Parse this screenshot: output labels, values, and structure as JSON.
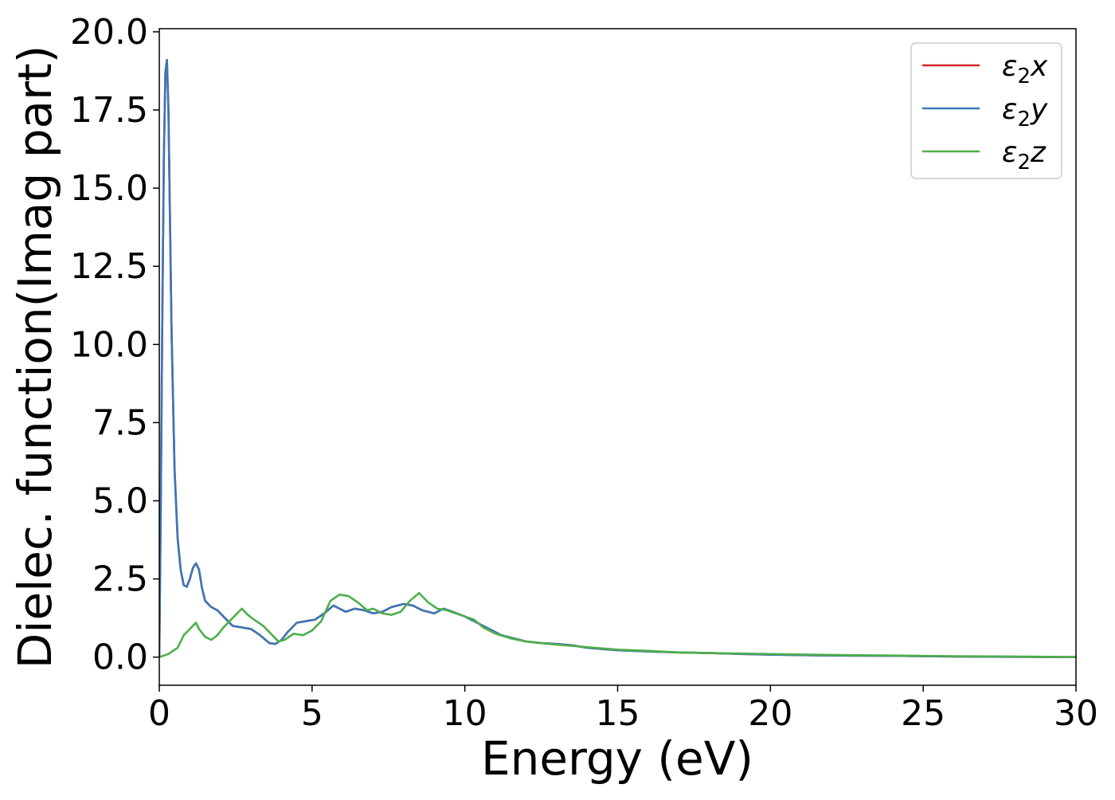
{
  "chart_data": {
    "type": "line",
    "title": "",
    "xlabel": "Energy (eV)",
    "ylabel": "Dielec. function(Imag part)",
    "xlim": [
      0,
      30
    ],
    "ylim": [
      -0.9,
      20.1
    ],
    "xticks": [
      0,
      5,
      10,
      15,
      20,
      25,
      30
    ],
    "xtick_labels": [
      "0",
      "5",
      "10",
      "15",
      "20",
      "25",
      "30"
    ],
    "yticks": [
      0.0,
      2.5,
      5.0,
      7.5,
      10.0,
      12.5,
      15.0,
      17.5,
      20.0
    ],
    "ytick_labels": [
      "0.0",
      "2.5",
      "5.0",
      "7.5",
      "10.0",
      "12.5",
      "15.0",
      "17.5",
      "20.0"
    ],
    "grid": false,
    "legend_position": "top-right",
    "series": [
      {
        "name": "ε2x",
        "legend_base": "ε",
        "legend_sub": "2",
        "legend_var": "x",
        "color": "#d62728",
        "x": [
          0,
          0.05,
          0.1,
          0.15,
          0.2,
          0.25,
          0.3,
          0.35,
          0.4,
          0.5,
          0.6,
          0.7,
          0.8,
          0.9,
          1.0,
          1.1,
          1.2,
          1.3,
          1.4,
          1.5,
          1.7,
          1.9,
          2.1,
          2.4,
          2.7,
          3.0,
          3.3,
          3.6,
          3.8,
          4.0,
          4.2,
          4.5,
          4.8,
          5.1,
          5.4,
          5.7,
          5.9,
          6.1,
          6.4,
          6.7,
          7.0,
          7.3,
          7.6,
          8.0,
          8.3,
          8.6,
          9.0,
          9.3,
          9.6,
          10.0,
          10.4,
          10.8,
          11.2,
          11.6,
          12.0,
          12.5,
          13.0,
          13.5,
          14.0,
          15.0,
          16.0,
          17.0,
          18.0,
          19.0,
          20.0,
          22.0,
          24.0,
          26.0,
          28.0,
          30.0
        ],
        "y": [
          0.0,
          5.0,
          11.0,
          16.0,
          18.7,
          19.1,
          17.5,
          14.0,
          10.5,
          6.0,
          3.8,
          2.8,
          2.3,
          2.25,
          2.5,
          2.85,
          3.0,
          2.8,
          2.2,
          1.8,
          1.6,
          1.5,
          1.3,
          1.0,
          0.95,
          0.9,
          0.7,
          0.45,
          0.42,
          0.55,
          0.8,
          1.1,
          1.15,
          1.2,
          1.4,
          1.65,
          1.55,
          1.45,
          1.55,
          1.5,
          1.4,
          1.45,
          1.6,
          1.7,
          1.65,
          1.5,
          1.4,
          1.55,
          1.45,
          1.3,
          1.1,
          0.9,
          0.7,
          0.6,
          0.5,
          0.45,
          0.42,
          0.38,
          0.3,
          0.22,
          0.18,
          0.15,
          0.13,
          0.1,
          0.08,
          0.05,
          0.04,
          0.02,
          0.01,
          0.0
        ]
      },
      {
        "name": "ε2y",
        "legend_base": "ε",
        "legend_sub": "2",
        "legend_var": "y",
        "color": "#3a78b6",
        "x": [
          0,
          0.05,
          0.1,
          0.15,
          0.2,
          0.25,
          0.3,
          0.35,
          0.4,
          0.5,
          0.6,
          0.7,
          0.8,
          0.9,
          1.0,
          1.1,
          1.2,
          1.3,
          1.4,
          1.5,
          1.7,
          1.9,
          2.1,
          2.4,
          2.7,
          3.0,
          3.3,
          3.6,
          3.8,
          4.0,
          4.2,
          4.5,
          4.8,
          5.1,
          5.4,
          5.7,
          5.9,
          6.1,
          6.4,
          6.7,
          7.0,
          7.3,
          7.6,
          8.0,
          8.3,
          8.6,
          9.0,
          9.3,
          9.6,
          10.0,
          10.4,
          10.8,
          11.2,
          11.6,
          12.0,
          12.5,
          13.0,
          13.5,
          14.0,
          15.0,
          16.0,
          17.0,
          18.0,
          19.0,
          20.0,
          22.0,
          24.0,
          26.0,
          28.0,
          30.0
        ],
        "y": [
          0.0,
          5.0,
          11.0,
          16.0,
          18.7,
          19.1,
          17.5,
          14.0,
          10.5,
          6.0,
          3.8,
          2.8,
          2.3,
          2.25,
          2.5,
          2.85,
          3.0,
          2.8,
          2.2,
          1.8,
          1.6,
          1.5,
          1.3,
          1.0,
          0.95,
          0.9,
          0.7,
          0.45,
          0.42,
          0.55,
          0.8,
          1.1,
          1.15,
          1.2,
          1.4,
          1.65,
          1.55,
          1.45,
          1.55,
          1.5,
          1.4,
          1.45,
          1.6,
          1.7,
          1.65,
          1.5,
          1.4,
          1.55,
          1.45,
          1.3,
          1.1,
          0.9,
          0.7,
          0.6,
          0.5,
          0.45,
          0.42,
          0.38,
          0.3,
          0.22,
          0.18,
          0.15,
          0.13,
          0.1,
          0.08,
          0.05,
          0.04,
          0.02,
          0.01,
          0.0
        ]
      },
      {
        "name": "ε2z",
        "legend_base": "ε",
        "legend_sub": "2",
        "legend_var": "z",
        "color": "#4daf4a",
        "x": [
          0,
          0.3,
          0.6,
          0.8,
          1.0,
          1.2,
          1.3,
          1.5,
          1.7,
          1.9,
          2.1,
          2.4,
          2.7,
          2.9,
          3.1,
          3.4,
          3.7,
          3.9,
          4.1,
          4.4,
          4.7,
          5.0,
          5.3,
          5.6,
          5.9,
          6.2,
          6.5,
          6.8,
          7.0,
          7.3,
          7.6,
          7.9,
          8.2,
          8.5,
          8.8,
          9.1,
          9.4,
          9.7,
          10.0,
          10.3,
          10.6,
          11.0,
          11.5,
          12.0,
          12.5,
          13.0,
          14.0,
          15.0,
          16.0,
          17.0,
          18.0,
          20.0,
          22.0,
          24.0,
          26.0,
          28.0,
          30.0
        ],
        "y": [
          0.0,
          0.1,
          0.3,
          0.7,
          0.9,
          1.1,
          0.9,
          0.65,
          0.55,
          0.7,
          0.95,
          1.25,
          1.55,
          1.35,
          1.2,
          1.0,
          0.7,
          0.5,
          0.55,
          0.75,
          0.7,
          0.85,
          1.15,
          1.8,
          2.0,
          1.95,
          1.75,
          1.5,
          1.55,
          1.4,
          1.35,
          1.45,
          1.8,
          2.05,
          1.75,
          1.55,
          1.5,
          1.4,
          1.3,
          1.2,
          0.95,
          0.75,
          0.6,
          0.5,
          0.45,
          0.4,
          0.32,
          0.24,
          0.2,
          0.15,
          0.13,
          0.1,
          0.07,
          0.05,
          0.03,
          0.02,
          0.0
        ]
      }
    ]
  }
}
